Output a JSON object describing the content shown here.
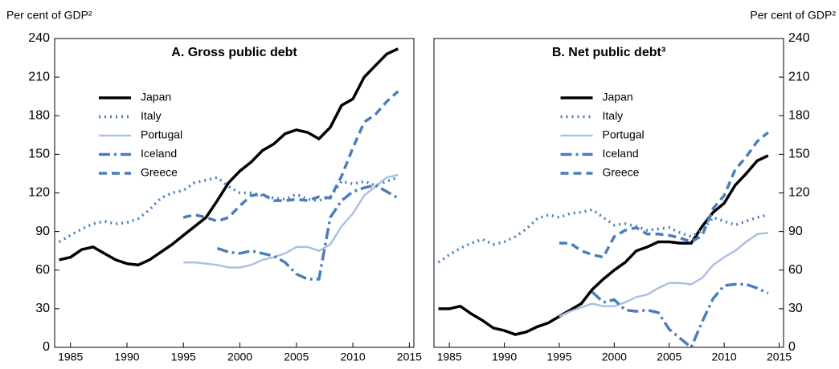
{
  "chart_data": [
    {
      "type": "line",
      "title": "A. Gross public debt",
      "y_label": "Per cent of GDP²",
      "y_axis_side": "left",
      "legend": "upper left",
      "x": [
        1984,
        1985,
        1986,
        1987,
        1988,
        1989,
        1990,
        1991,
        1992,
        1993,
        1994,
        1995,
        1996,
        1997,
        1998,
        1999,
        2000,
        2001,
        2002,
        2003,
        2004,
        2005,
        2006,
        2007,
        2008,
        2009,
        2010,
        2011,
        2012,
        2013,
        2014
      ],
      "xlim": [
        1983.6,
        2015.4
      ],
      "xticks": [
        1985,
        1990,
        1995,
        2000,
        2005,
        2010,
        2015
      ],
      "ylim": [
        0,
        240
      ],
      "yticks": [
        0,
        30,
        60,
        90,
        120,
        150,
        180,
        210,
        240
      ],
      "series": [
        {
          "name": "Japan",
          "color": "#000000",
          "dash": "solid",
          "width": 3.5,
          "values": [
            68,
            70,
            76,
            78,
            73,
            68,
            65,
            64,
            68,
            74,
            80,
            87,
            94,
            101,
            114,
            128,
            137,
            144,
            153,
            158,
            166,
            169,
            167,
            162,
            171,
            188,
            193,
            210,
            219,
            228,
            232
          ]
        },
        {
          "name": "Italy",
          "color": "#4a7ebb",
          "dash": "dotted",
          "width": 3.5,
          "values": [
            82,
            87,
            92,
            96,
            98,
            96,
            97,
            100,
            107,
            116,
            120,
            122,
            128,
            130,
            132,
            125,
            120,
            120,
            118,
            116,
            115,
            119,
            115,
            114,
            117,
            129,
            127,
            129,
            126,
            129,
            132
          ]
        },
        {
          "name": "Portugal",
          "color": "#a9c1e3",
          "dash": "solid",
          "width": 2.5,
          "values": [
            null,
            null,
            null,
            null,
            null,
            null,
            null,
            null,
            null,
            null,
            null,
            66,
            66,
            65,
            64,
            62,
            62,
            64,
            68,
            70,
            73,
            78,
            78,
            75,
            80,
            94,
            104,
            118,
            125,
            132,
            134
          ]
        },
        {
          "name": "Iceland",
          "color": "#4a7ebb",
          "dash": "dashdot",
          "width": 3.5,
          "values": [
            null,
            null,
            null,
            null,
            null,
            null,
            null,
            null,
            null,
            null,
            null,
            null,
            null,
            null,
            77,
            74,
            73,
            75,
            73,
            71,
            66,
            57,
            53,
            53,
            101,
            114,
            121,
            124,
            126,
            121,
            116
          ]
        },
        {
          "name": "Greece",
          "color": "#4a7ebb",
          "dash": "dashed",
          "width": 3.5,
          "values": [
            null,
            null,
            null,
            null,
            null,
            null,
            null,
            null,
            null,
            null,
            null,
            101,
            103,
            101,
            98,
            101,
            110,
            118,
            119,
            114,
            114,
            115,
            114,
            117,
            116,
            133,
            155,
            175,
            181,
            191,
            199
          ]
        }
      ]
    },
    {
      "type": "line",
      "title": "B. Net public debt³",
      "y_label": "Per cent of GDP²",
      "y_axis_side": "right",
      "legend": "upper center",
      "x": [
        1984,
        1985,
        1986,
        1987,
        1988,
        1989,
        1990,
        1991,
        1992,
        1993,
        1994,
        1995,
        1996,
        1997,
        1998,
        1999,
        2000,
        2001,
        2002,
        2003,
        2004,
        2005,
        2006,
        2007,
        2008,
        2009,
        2010,
        2011,
        2012,
        2013,
        2014
      ],
      "xlim": [
        1983.6,
        2015.4
      ],
      "xticks": [
        1985,
        1990,
        1995,
        2000,
        2005,
        2010,
        2015
      ],
      "ylim": [
        0,
        240
      ],
      "yticks": [
        0,
        30,
        60,
        90,
        120,
        150,
        180,
        210,
        240
      ],
      "series": [
        {
          "name": "Japan",
          "color": "#000000",
          "dash": "solid",
          "width": 3.5,
          "values": [
            30,
            30,
            32,
            26,
            21,
            15,
            13,
            10,
            12,
            16,
            19,
            24,
            29,
            34,
            45,
            53,
            60,
            66,
            75,
            78,
            82,
            82,
            81,
            81,
            94,
            105,
            112,
            126,
            135,
            145,
            149
          ]
        },
        {
          "name": "Italy",
          "color": "#4a7ebb",
          "dash": "dotted",
          "width": 3.5,
          "values": [
            66,
            72,
            77,
            81,
            84,
            80,
            82,
            86,
            92,
            100,
            103,
            101,
            104,
            105,
            107,
            101,
            95,
            96,
            94,
            91,
            92,
            93,
            89,
            86,
            91,
            101,
            98,
            95,
            98,
            101,
            103
          ]
        },
        {
          "name": "Portugal",
          "color": "#a9c1e3",
          "dash": "solid",
          "width": 2.5,
          "values": [
            null,
            null,
            null,
            null,
            null,
            null,
            null,
            null,
            null,
            null,
            null,
            24,
            28,
            31,
            34,
            32,
            32,
            35,
            39,
            41,
            46,
            50,
            50,
            49,
            54,
            64,
            70,
            75,
            82,
            88,
            89
          ]
        },
        {
          "name": "Iceland",
          "color": "#4a7ebb",
          "dash": "dashdot",
          "width": 3.5,
          "values": [
            null,
            null,
            null,
            null,
            null,
            null,
            null,
            null,
            null,
            null,
            null,
            null,
            null,
            null,
            43,
            35,
            37,
            29,
            28,
            29,
            27,
            14,
            7,
            0,
            20,
            38,
            48,
            49,
            49,
            46,
            42
          ]
        },
        {
          "name": "Greece",
          "color": "#4a7ebb",
          "dash": "dashed",
          "width": 3.5,
          "values": [
            null,
            null,
            null,
            null,
            null,
            null,
            null,
            null,
            null,
            null,
            null,
            81,
            81,
            75,
            72,
            70,
            86,
            91,
            93,
            88,
            88,
            87,
            85,
            82,
            87,
            108,
            118,
            138,
            148,
            160,
            167
          ]
        }
      ]
    }
  ]
}
